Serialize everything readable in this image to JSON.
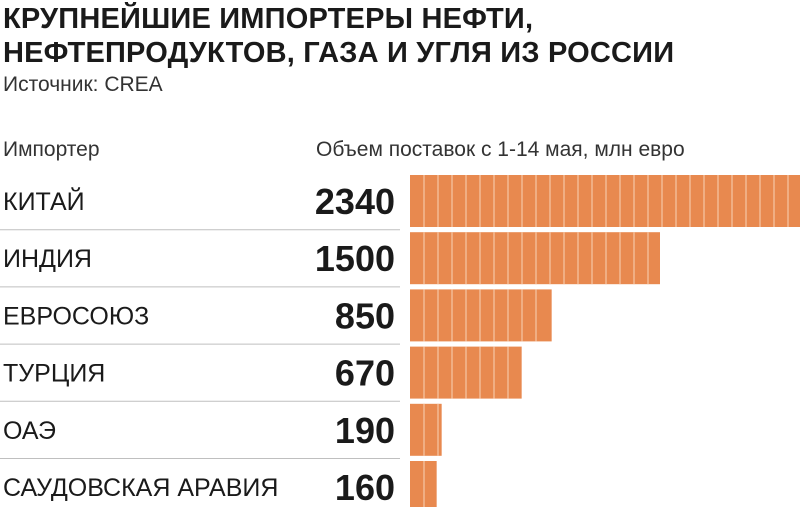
{
  "title": {
    "line1": "КРУПНЕЙШИЕ ИМПОРТЕРЫ НЕФТИ,",
    "line2": "НЕФТЕПРОДУКТОВ, ГАЗА И УГЛЯ ИЗ РОССИИ"
  },
  "source": "Источник: CREA",
  "headers": {
    "importer": "Импортер",
    "volume": "Объем поставок с 1-14 мая, млн евро"
  },
  "colors": {
    "bar": "#e8894f",
    "bar_stripe": "#f6c6a6",
    "divider": "#bfbfbf",
    "text": "#1a1a1a"
  },
  "chart_data": {
    "type": "bar",
    "orientation": "horizontal",
    "categories": [
      "КИТАЙ",
      "ИНДИЯ",
      "ЕВРОСОЮЗ",
      "ТУРЦИЯ",
      "ОАЭ",
      "САУДОВСКАЯ АРАВИЯ"
    ],
    "values": [
      2340,
      1500,
      850,
      670,
      190,
      160
    ],
    "value_labels": [
      "2340",
      "1500",
      "850",
      "670",
      "190",
      "160"
    ],
    "xlabel": "Объем поставок с 1-14 мая, млн евро",
    "ylabel": "Импортер",
    "xlim": [
      0,
      2340
    ],
    "grid": false,
    "legend": "none"
  }
}
